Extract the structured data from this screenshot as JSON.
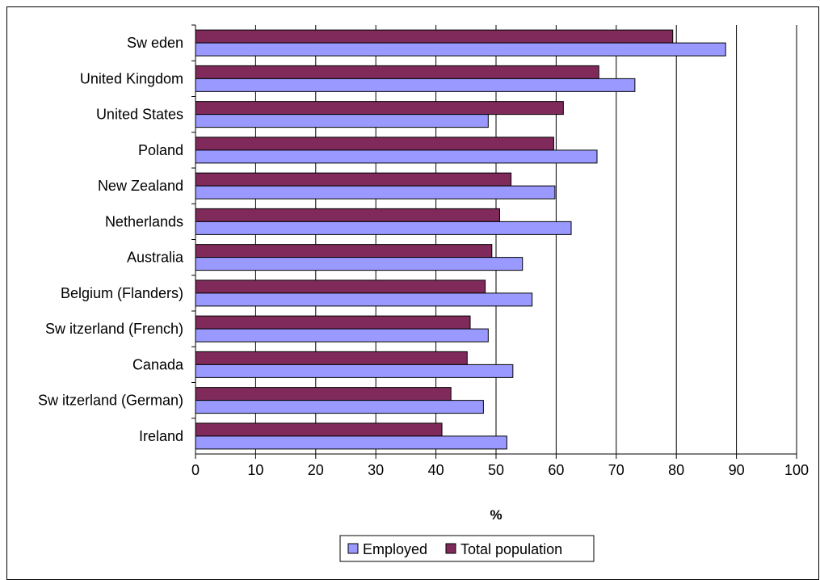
{
  "chart_data": {
    "type": "bar",
    "orientation": "horizontal",
    "categories": [
      "Sw eden",
      "United Kingdom",
      "United States",
      "Poland",
      "New  Zealand",
      "Netherlands",
      "Australia",
      "Belgium (Flanders)",
      "Sw itzerland (French)",
      "Canada",
      "Sw itzerland (German)",
      "Ireland"
    ],
    "series": [
      {
        "name": "Total population",
        "color": "#7f2a5a",
        "values": [
          79.4,
          67.1,
          61.2,
          59.6,
          52.5,
          50.6,
          49.3,
          48.2,
          45.7,
          45.2,
          42.5,
          41.0
        ]
      },
      {
        "name": "Employed",
        "color": "#9999ff",
        "values": [
          88.2,
          73.1,
          48.7,
          66.8,
          59.8,
          62.5,
          54.4,
          56.0,
          48.7,
          52.8,
          47.9,
          51.8
        ]
      }
    ],
    "xlabel": "%",
    "xlim": [
      0,
      100
    ],
    "xticks": [
      "0",
      "10",
      "20",
      "30",
      "40",
      "50",
      "60",
      "70",
      "80",
      "90",
      "100"
    ],
    "grid": "vertical",
    "legend": {
      "placement": "bottom",
      "items": [
        "Employed",
        "Total population"
      ]
    }
  }
}
